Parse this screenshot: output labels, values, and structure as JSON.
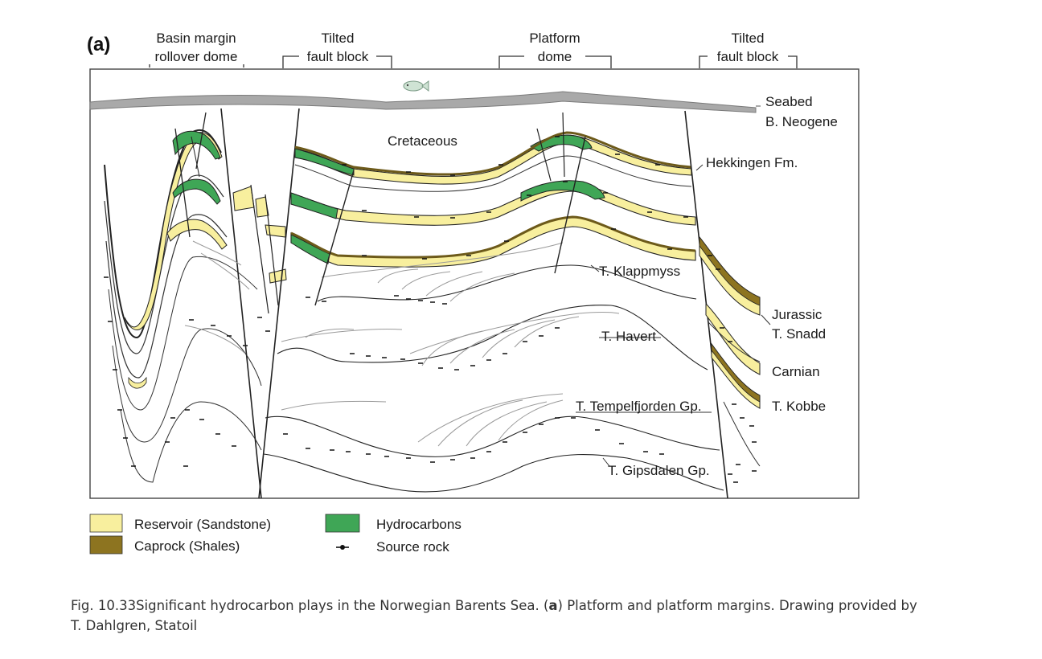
{
  "panel_label": "(a)",
  "top_labels": [
    {
      "line1": "Basin margin",
      "line2": "rollover dome"
    },
    {
      "line1": "Tilted",
      "line2": "fault block"
    },
    {
      "line1": "Platform",
      "line2": "dome"
    },
    {
      "line1": "Tilted",
      "line2": "fault block"
    }
  ],
  "layer_labels": {
    "seabed": "Seabed",
    "neogene": "B. Neogene",
    "cretaceous": "Cretaceous",
    "hekkingen": "Hekkingen Fm.",
    "klappmyss": "T. Klappmyss",
    "havert": "T. Havert",
    "tempelfjorden": "T. Tempelfjorden Gp.",
    "gipsdalen": "T. Gipsdalen Gp.",
    "jurassic": "Jurassic",
    "snadd": "T. Snadd",
    "carnian": "Carnian",
    "kobbe": "T. Kobbe"
  },
  "legend": [
    {
      "label": "Reservoir (Sandstone)",
      "color": "#f8ef9e",
      "kind": "swatch"
    },
    {
      "label": "Caprock (Shales)",
      "color": "#8d7420",
      "kind": "swatch"
    },
    {
      "label": "Hydrocarbons",
      "color": "#3fa656",
      "kind": "swatch"
    },
    {
      "label": "Source rock",
      "color": "#111111",
      "kind": "source-symbol"
    }
  ],
  "caption": {
    "prefix": "Fig. 10.33Significant hydrocarbon plays in the Norwegian Barents Sea. (",
    "bold": "a",
    "rest": ") Platform and platform margins. Drawing provided by",
    "line2": "T.  Dahlgren, Statoil"
  },
  "colors": {
    "reservoir": "#f8ef9e",
    "caprock": "#8d7420",
    "hydrocarbons": "#3fa656",
    "seabed": "#a9a9a9"
  }
}
